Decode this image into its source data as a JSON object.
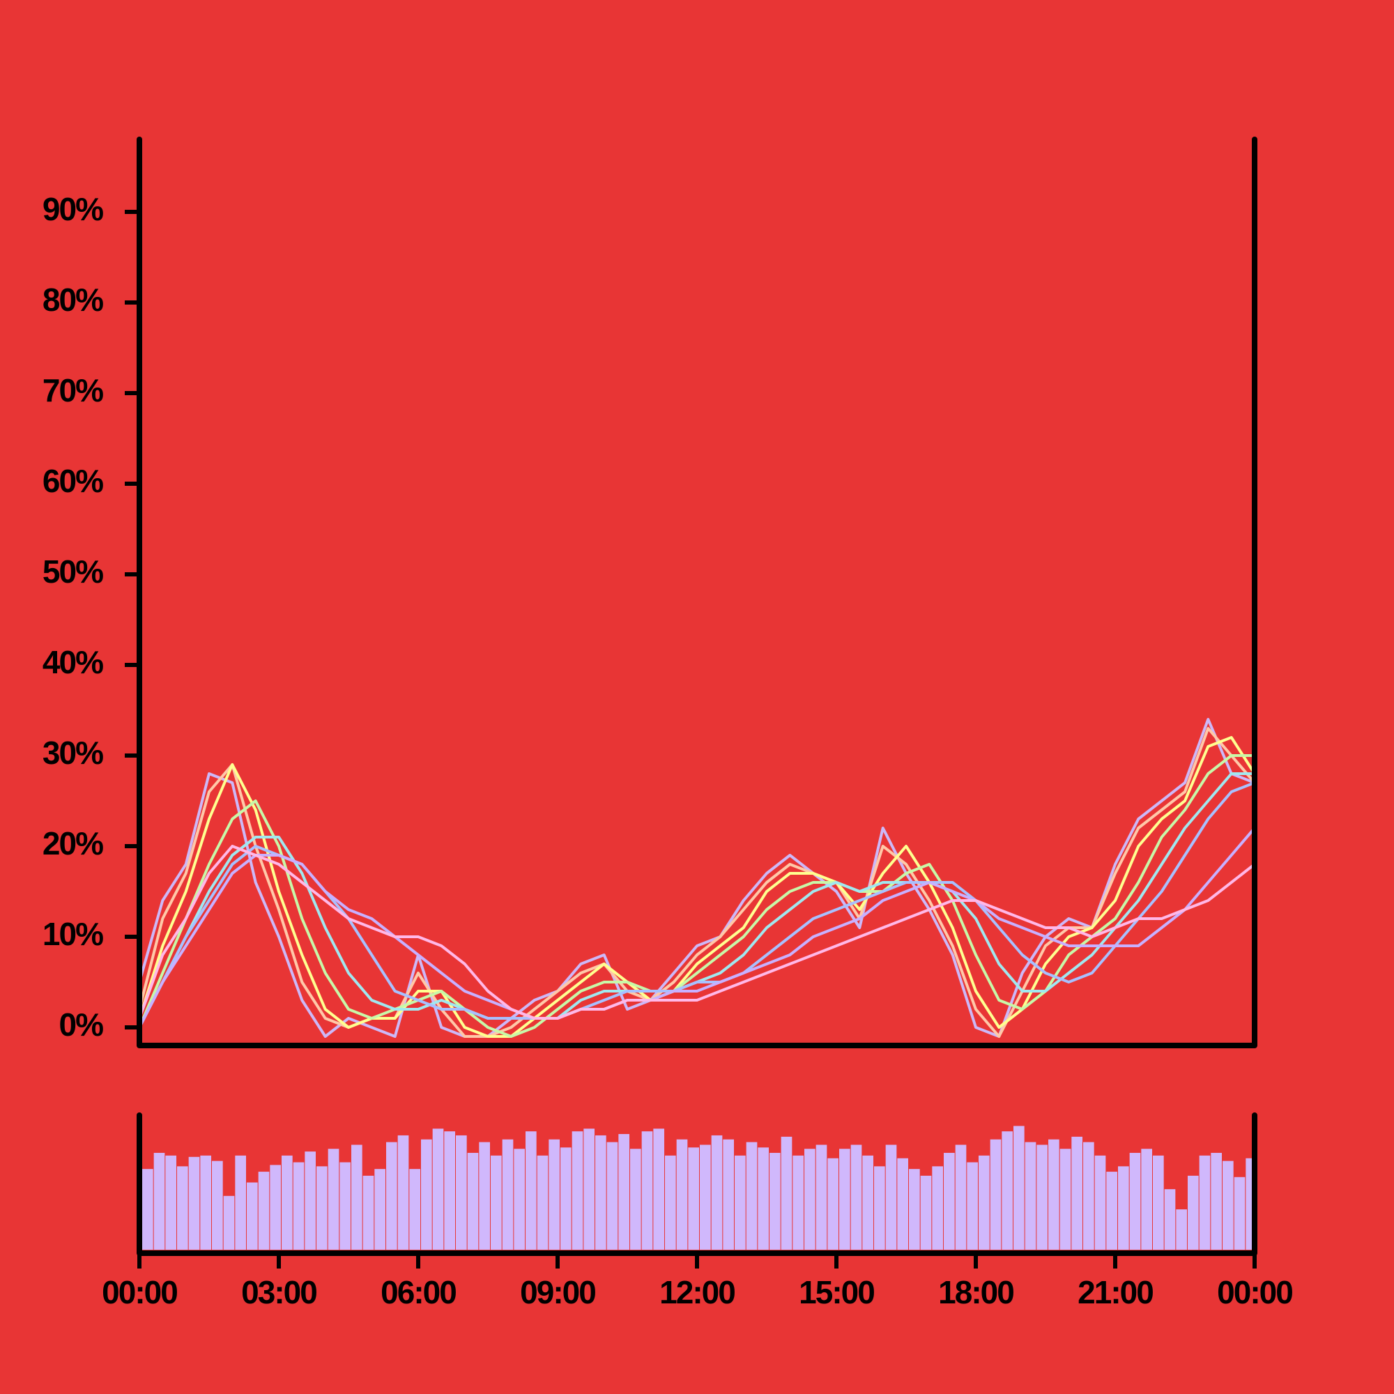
{
  "chart_data": [
    {
      "type": "line",
      "background": "#e83535",
      "xlim": [
        0,
        24
      ],
      "ylim": [
        -2,
        98
      ],
      "yticks": [
        {
          "value": 0,
          "label": "0%"
        },
        {
          "value": 10,
          "label": "10%"
        },
        {
          "value": 20,
          "label": "20%"
        },
        {
          "value": 30,
          "label": "30%"
        },
        {
          "value": 40,
          "label": "40%"
        },
        {
          "value": 50,
          "label": "50%"
        },
        {
          "value": 60,
          "label": "60%"
        },
        {
          "value": 70,
          "label": "70%"
        },
        {
          "value": 80,
          "label": "80%"
        },
        {
          "value": 90,
          "label": "90%"
        }
      ],
      "x": [
        0,
        0.5,
        1,
        1.5,
        2,
        2.5,
        3,
        3.5,
        4,
        4.5,
        5,
        5.5,
        6,
        6.5,
        7,
        7.5,
        8,
        8.5,
        9,
        9.5,
        10,
        10.5,
        11,
        11.5,
        12,
        12.5,
        13,
        13.5,
        14,
        14.5,
        15,
        15.5,
        16,
        16.5,
        17,
        17.5,
        18,
        18.5,
        19,
        19.5,
        20,
        20.5,
        21,
        21.5,
        22,
        22.5,
        23,
        23.5,
        24
      ],
      "series": [
        {
          "color": "#cdb8f8",
          "values": [
            5,
            14,
            18,
            28,
            27,
            16,
            10,
            3,
            -1,
            1,
            0,
            -1,
            8,
            0,
            -1,
            -1,
            1,
            3,
            4,
            7,
            8,
            2,
            3,
            6,
            9,
            10,
            14,
            17,
            19,
            17,
            15,
            11,
            22,
            17,
            13,
            8,
            0,
            -1,
            6,
            10,
            12,
            11,
            18,
            23,
            25,
            27,
            34,
            28,
            27
          ]
        },
        {
          "color": "#ffc8a8",
          "values": [
            2,
            12,
            17,
            26,
            29,
            20,
            13,
            5,
            1,
            0,
            1,
            1,
            6,
            2,
            -1,
            -1,
            0,
            2,
            4,
            6,
            7,
            4,
            3,
            5,
            8,
            10,
            13,
            16,
            18,
            17,
            16,
            12,
            20,
            18,
            14,
            9,
            2,
            -1,
            4,
            9,
            11,
            11,
            17,
            22,
            24,
            26,
            33,
            30,
            27
          ]
        },
        {
          "color": "#ffff90",
          "values": [
            1,
            9,
            15,
            23,
            29,
            24,
            15,
            8,
            2,
            0,
            1,
            1,
            4,
            4,
            0,
            -1,
            -1,
            1,
            3,
            5,
            7,
            5,
            3,
            4,
            7,
            9,
            11,
            15,
            17,
            17,
            16,
            13,
            17,
            20,
            16,
            11,
            4,
            0,
            2,
            7,
            10,
            11,
            14,
            20,
            23,
            25,
            31,
            32,
            28
          ]
        },
        {
          "color": "#c8f8a8",
          "values": [
            0,
            6,
            12,
            18,
            23,
            25,
            20,
            12,
            6,
            2,
            1,
            2,
            3,
            4,
            2,
            0,
            -1,
            0,
            2,
            4,
            5,
            5,
            4,
            4,
            6,
            8,
            10,
            13,
            15,
            16,
            16,
            15,
            15,
            17,
            18,
            14,
            8,
            3,
            2,
            4,
            8,
            10,
            12,
            16,
            21,
            24,
            28,
            30,
            30
          ]
        },
        {
          "color": "#a0e8f0",
          "values": [
            0,
            5,
            10,
            15,
            19,
            21,
            21,
            17,
            11,
            6,
            3,
            2,
            2,
            3,
            2,
            1,
            1,
            1,
            1,
            3,
            4,
            4,
            4,
            4,
            5,
            6,
            8,
            11,
            13,
            15,
            16,
            15,
            16,
            16,
            16,
            15,
            12,
            7,
            4,
            4,
            6,
            8,
            11,
            14,
            18,
            22,
            25,
            28,
            28
          ]
        },
        {
          "color": "#a8c0ff",
          "values": [
            0,
            5,
            10,
            14,
            18,
            20,
            19,
            18,
            15,
            12,
            8,
            4,
            3,
            2,
            2,
            1,
            1,
            1,
            1,
            2,
            3,
            4,
            4,
            4,
            5,
            5,
            6,
            8,
            10,
            12,
            13,
            14,
            15,
            16,
            16,
            16,
            14,
            11,
            8,
            6,
            5,
            6,
            9,
            12,
            15,
            19,
            23,
            26,
            27
          ]
        },
        {
          "color": "#c8b0ff",
          "values": [
            0,
            5,
            9,
            13,
            17,
            19,
            19,
            18,
            15,
            13,
            12,
            10,
            8,
            6,
            4,
            3,
            2,
            1,
            1,
            2,
            2,
            3,
            3,
            4,
            4,
            5,
            6,
            7,
            8,
            10,
            11,
            12,
            14,
            15,
            16,
            15,
            14,
            12,
            11,
            10,
            9,
            9,
            9,
            9,
            11,
            13,
            16,
            19,
            22
          ]
        },
        {
          "color": "#ffb8e8",
          "values": [
            1,
            8,
            12,
            17,
            20,
            19,
            18,
            16,
            14,
            12,
            11,
            10,
            10,
            9,
            7,
            4,
            2,
            1,
            1,
            2,
            2,
            3,
            3,
            3,
            3,
            4,
            5,
            6,
            7,
            8,
            9,
            10,
            11,
            12,
            13,
            14,
            14,
            13,
            12,
            11,
            11,
            10,
            11,
            12,
            12,
            13,
            14,
            16,
            18
          ]
        }
      ]
    },
    {
      "type": "bar",
      "color": "#d0b8fc",
      "xlim": [
        0,
        24
      ],
      "ylim": [
        0,
        100
      ],
      "xticks": [
        {
          "value": 0,
          "label": "00:00"
        },
        {
          "value": 3,
          "label": "03:00"
        },
        {
          "value": 6,
          "label": "06:00"
        },
        {
          "value": 9,
          "label": "09:00"
        },
        {
          "value": 12,
          "label": "12:00"
        },
        {
          "value": 15,
          "label": "15:00"
        },
        {
          "value": 18,
          "label": "18:00"
        },
        {
          "value": 21,
          "label": "21:00"
        },
        {
          "value": 24,
          "label": "00:00"
        }
      ],
      "x": [
        0,
        0.25,
        0.5,
        0.75,
        1,
        1.25,
        1.5,
        1.75,
        2,
        2.25,
        2.5,
        2.75,
        3,
        3.25,
        3.5,
        3.75,
        4,
        4.25,
        4.5,
        4.75,
        5,
        5.25,
        5.5,
        5.75,
        6,
        6.25,
        6.5,
        6.75,
        7,
        7.25,
        7.5,
        7.75,
        8,
        8.25,
        8.5,
        8.75,
        9,
        9.25,
        9.5,
        9.75,
        10,
        10.25,
        10.5,
        10.75,
        11,
        11.25,
        11.5,
        11.75,
        12,
        12.25,
        12.5,
        12.75,
        13,
        13.25,
        13.5,
        13.75,
        14,
        14.25,
        14.5,
        14.75,
        15,
        15.25,
        15.5,
        15.75,
        16,
        16.25,
        16.5,
        16.75,
        17,
        17.25,
        17.5,
        17.75,
        18,
        18.25,
        18.5,
        18.75,
        19,
        19.25,
        19.5,
        19.75,
        20,
        20.25,
        20.5,
        20.75,
        21,
        21.25,
        21.5,
        21.75,
        22,
        22.25,
        22.5,
        22.75,
        23,
        23.25,
        23.5,
        23.75
      ],
      "values": [
        60,
        72,
        70,
        62,
        69,
        70,
        66,
        40,
        70,
        50,
        58,
        63,
        70,
        65,
        73,
        62,
        75,
        65,
        78,
        55,
        60,
        80,
        85,
        60,
        82,
        90,
        88,
        85,
        72,
        80,
        70,
        82,
        75,
        88,
        70,
        82,
        76,
        88,
        90,
        85,
        80,
        86,
        75,
        88,
        90,
        70,
        82,
        76,
        78,
        85,
        82,
        70,
        80,
        76,
        72,
        84,
        70,
        75,
        78,
        68,
        75,
        78,
        70,
        62,
        78,
        68,
        60,
        55,
        62,
        72,
        78,
        65,
        70,
        82,
        88,
        92,
        80,
        78,
        82,
        75,
        84,
        80,
        70,
        58,
        62,
        72,
        75,
        70,
        45,
        30,
        55,
        70,
        72,
        66,
        54,
        68
      ]
    }
  ]
}
